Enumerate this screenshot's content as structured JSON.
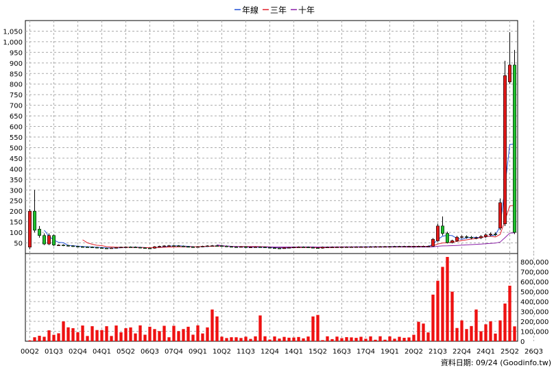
{
  "legend": [
    {
      "label": "年線",
      "color": "#1f4fd6"
    },
    {
      "label": "三年",
      "color": "#e0202a"
    },
    {
      "label": "十年",
      "color": "#8b1fa8"
    }
  ],
  "footer": {
    "text": "資料日期: 09/24  (Goodinfo.tw)"
  },
  "chart_data": {
    "type": "candlestick+bar",
    "price_axis": {
      "ylim": [
        0,
        1100
      ],
      "ticks": [
        50,
        100,
        150,
        200,
        250,
        300,
        350,
        400,
        450,
        500,
        550,
        600,
        650,
        700,
        750,
        800,
        850,
        900,
        950,
        1000,
        1050
      ],
      "tick_labels": [
        "50",
        "100",
        "150",
        "200",
        "250",
        "300",
        "350",
        "400",
        "450",
        "500",
        "550",
        "600",
        "650",
        "700",
        "750",
        "800",
        "850",
        "900",
        "950",
        "1,000",
        "1,050"
      ]
    },
    "volume_axis": {
      "ylim": [
        0,
        850000
      ],
      "ticks": [
        0,
        100000,
        200000,
        300000,
        400000,
        500000,
        600000,
        700000,
        800000
      ],
      "tick_labels": [
        "0",
        "100,000",
        "200,000",
        "300,000",
        "400,000",
        "500,000",
        "600,000",
        "700,000",
        "800,000"
      ]
    },
    "x_tick_labels": [
      "00Q2",
      "01Q3",
      "02Q4",
      "04Q1",
      "05Q2",
      "06Q3",
      "07Q4",
      "09Q1",
      "10Q2",
      "11Q3",
      "12Q4",
      "14Q1",
      "15Q2",
      "16Q3",
      "17Q4",
      "19Q1",
      "20Q2",
      "21Q3",
      "22Q4",
      "24Q1",
      "25Q2",
      "26Q3"
    ],
    "quarters": 102,
    "candles_sample": [
      {
        "q": 0,
        "open": 30,
        "close": 200,
        "high": 210,
        "low": 20
      },
      {
        "q": 1,
        "open": 200,
        "close": 110,
        "high": 300,
        "low": 100
      },
      {
        "q": 2,
        "open": 115,
        "close": 85,
        "high": 130,
        "low": 75
      },
      {
        "q": 3,
        "open": 85,
        "close": 45,
        "high": 95,
        "low": 40
      },
      {
        "q": 4,
        "open": 45,
        "close": 85,
        "high": 95,
        "low": 40
      },
      {
        "q": 5,
        "open": 85,
        "close": 40,
        "high": 90,
        "low": 35
      },
      {
        "q": 85,
        "open": 60,
        "close": 130,
        "high": 140,
        "low": 55
      },
      {
        "q": 86,
        "open": 130,
        "close": 95,
        "high": 175,
        "low": 85
      },
      {
        "q": 98,
        "open": 120,
        "close": 240,
        "high": 260,
        "low": 110
      },
      {
        "q": 99,
        "open": 140,
        "close": 840,
        "high": 910,
        "low": 130
      },
      {
        "q": 100,
        "open": 810,
        "close": 890,
        "high": 1045,
        "low": 800
      }
    ],
    "volume_sample": [
      {
        "q": 0,
        "value": 8000
      },
      {
        "q": 1,
        "value": 40000
      },
      {
        "q": 2,
        "value": 55000
      },
      {
        "q": 3,
        "value": 45000
      },
      {
        "q": 4,
        "value": 110000
      },
      {
        "q": 5,
        "value": 65000
      },
      {
        "q": 6,
        "value": 80000
      },
      {
        "q": 7,
        "value": 200000
      },
      {
        "q": 8,
        "value": 140000
      },
      {
        "q": 38,
        "value": 320000
      },
      {
        "q": 39,
        "value": 250000
      },
      {
        "q": 48,
        "value": 260000
      },
      {
        "q": 59,
        "value": 250000
      },
      {
        "q": 60,
        "value": 265000
      },
      {
        "q": 84,
        "value": 470000
      },
      {
        "q": 85,
        "value": 610000
      },
      {
        "q": 86,
        "value": 750000
      },
      {
        "q": 87,
        "value": 850000
      },
      {
        "q": 88,
        "value": 500000
      },
      {
        "q": 93,
        "value": 320000
      },
      {
        "q": 98,
        "value": 210000
      },
      {
        "q": 99,
        "value": 380000
      },
      {
        "q": 100,
        "value": 560000
      }
    ]
  }
}
